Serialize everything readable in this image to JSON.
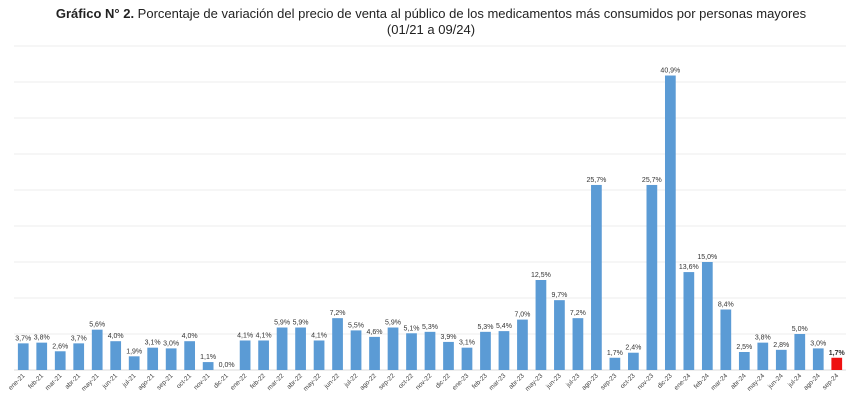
{
  "title_bold": "Gráfico N° 2.",
  "title_rest": " Porcentaje de variación del precio de venta al público de los medicamentos más consumidos por personas mayores",
  "subtitle": "(01/21 a 09/24)",
  "colors": {
    "bar": "#5b9bd5",
    "highlight": "#ee1111",
    "grid": "#e6e6e6"
  },
  "chart_data": {
    "type": "bar",
    "ylim": [
      0,
      45
    ],
    "grid": true,
    "categories": [
      "ene-21",
      "feb-21",
      "mar-21",
      "abr-21",
      "may-21",
      "jun-21",
      "jul-21",
      "ago-21",
      "sep-21",
      "oct-21",
      "nov-21",
      "dic-21",
      "ene-22",
      "feb-22",
      "mar-22",
      "abr-22",
      "may-22",
      "jun-22",
      "jul-22",
      "ago-22",
      "sep-22",
      "oct-22",
      "nov-22",
      "dic-22",
      "ene-23",
      "feb-23",
      "mar-23",
      "abr-23",
      "may-23",
      "jun-23",
      "jul-23",
      "ago-23",
      "sep-23",
      "oct-23",
      "nov-23",
      "dic-23",
      "ene-24",
      "feb-24",
      "mar-24",
      "abr-24",
      "may-24",
      "jun-24",
      "jul-24",
      "ago-24",
      "sep-24"
    ],
    "values": [
      3.7,
      3.8,
      2.6,
      3.7,
      5.6,
      4.0,
      1.9,
      3.1,
      3.0,
      4.0,
      1.1,
      0.0,
      4.1,
      4.1,
      5.9,
      5.9,
      4.1,
      7.2,
      5.5,
      4.6,
      5.9,
      5.1,
      5.3,
      3.9,
      3.1,
      5.3,
      5.4,
      7.0,
      12.5,
      9.7,
      7.2,
      25.7,
      1.7,
      2.4,
      25.7,
      40.9,
      13.6,
      15.0,
      8.4,
      2.5,
      3.8,
      2.8,
      5.0,
      3.0,
      1.7
    ],
    "labels": [
      "3,7%",
      "3,8%",
      "2,6%",
      "3,7%",
      "5,6%",
      "4,0%",
      "1,9%",
      "3,1%",
      "3,0%",
      "4,0%",
      "1,1%",
      "0,0%",
      "4,1%",
      "4,1%",
      "5,9%",
      "5,9%",
      "4,1%",
      "7,2%",
      "5,5%",
      "4,6%",
      "5,9%",
      "5,1%",
      "5,3%",
      "3,9%",
      "3,1%",
      "5,3%",
      "5,4%",
      "7,0%",
      "12,5%",
      "9,7%",
      "7,2%",
      "25,7%",
      "1,7%",
      "2,4%",
      "25,7%",
      "40,9%",
      "13,6%",
      "15,0%",
      "8,4%",
      "2,5%",
      "3,8%",
      "2,8%",
      "5,0%",
      "3,0%",
      "1,7%"
    ],
    "highlight_index": 44
  }
}
